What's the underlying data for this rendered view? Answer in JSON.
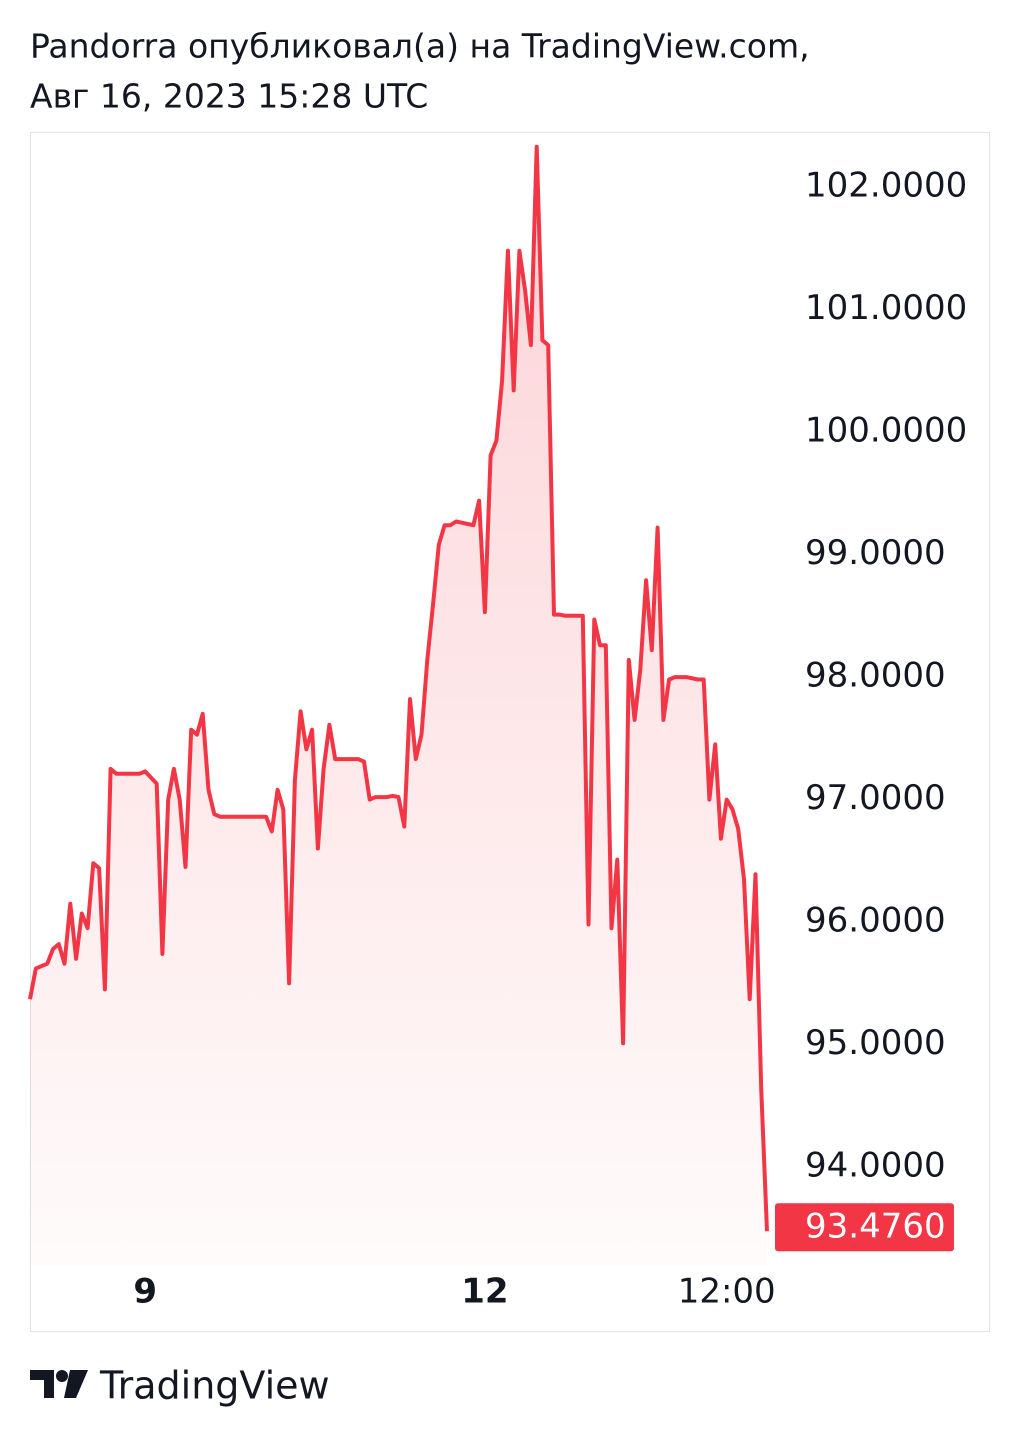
{
  "header": {
    "title": "Pandorra опубликовал(а) на TradingView.com,",
    "subtitle": "Авг 16, 2023 15:28 UTC"
  },
  "footer": {
    "brand": "TradingView"
  },
  "chart_data": {
    "type": "area",
    "color": "#f23645",
    "categories": [
      null,
      null,
      null,
      null,
      null,
      null,
      null,
      null,
      null,
      null,
      null,
      null,
      null,
      null,
      null,
      null,
      null,
      null,
      null,
      null,
      "9",
      null,
      null,
      null,
      null,
      null,
      null,
      null,
      null,
      null,
      null,
      null,
      null,
      null,
      null,
      null,
      null,
      null,
      null,
      null,
      null,
      null,
      null,
      null,
      null,
      null,
      null,
      null,
      null,
      null,
      null,
      null,
      null,
      null,
      null,
      null,
      null,
      null,
      null,
      null,
      null,
      null,
      null,
      null,
      null,
      null,
      null,
      null,
      null,
      null,
      null,
      null,
      null,
      null,
      null,
      null,
      null,
      null,
      null,
      "12",
      null,
      null,
      null,
      null,
      null,
      null,
      null,
      null,
      null,
      null,
      null,
      null,
      null,
      null,
      null,
      null,
      null,
      null,
      null,
      null,
      null,
      null,
      null,
      null,
      null,
      null,
      null,
      null,
      null,
      null,
      null,
      null,
      null,
      null,
      null,
      null,
      null,
      null,
      null,
      null,
      null,
      "12:00",
      null,
      null,
      null,
      null,
      null,
      null,
      null
    ],
    "values": [
      95.37,
      95.62,
      95.64,
      95.66,
      95.78,
      95.82,
      95.66,
      96.15,
      95.7,
      96.07,
      95.95,
      96.48,
      96.44,
      95.45,
      97.25,
      97.21,
      97.21,
      97.21,
      97.21,
      97.21,
      97.23,
      97.18,
      97.13,
      95.74,
      97.0,
      97.25,
      97.0,
      96.45,
      97.57,
      97.53,
      97.7,
      97.08,
      96.88,
      96.86,
      96.86,
      96.86,
      96.86,
      96.86,
      96.86,
      96.86,
      96.86,
      96.86,
      96.74,
      97.08,
      96.92,
      95.5,
      97.16,
      97.72,
      97.41,
      97.57,
      96.6,
      97.25,
      97.61,
      97.33,
      97.33,
      97.33,
      97.33,
      97.33,
      97.31,
      97.0,
      97.02,
      97.02,
      97.02,
      97.03,
      97.02,
      96.78,
      97.82,
      97.33,
      97.53,
      98.14,
      98.59,
      99.08,
      99.24,
      99.24,
      99.27,
      99.26,
      99.25,
      99.24,
      99.44,
      98.53,
      99.81,
      99.93,
      100.42,
      101.48,
      100.34,
      101.48,
      101.15,
      100.71,
      102.33,
      100.75,
      100.71,
      98.51,
      98.51,
      98.5,
      98.5,
      98.5,
      98.5,
      95.98,
      98.47,
      98.26,
      98.26,
      95.95,
      96.51,
      95.01,
      98.14,
      97.65,
      98.06,
      98.79,
      98.22,
      99.22,
      97.65,
      97.98,
      98.0,
      98.0,
      98.0,
      97.99,
      97.98,
      97.98,
      97.0,
      97.45,
      96.68,
      97.0,
      96.92,
      96.76,
      96.35,
      95.37,
      96.39,
      94.64,
      93.476
    ],
    "value_labels": [
      null,
      null,
      null,
      null,
      null,
      null,
      null,
      null,
      null,
      null,
      null,
      null,
      null,
      null,
      null,
      null,
      null,
      null,
      null,
      null,
      null,
      null,
      null,
      null,
      null,
      null,
      null,
      null,
      null,
      null,
      null,
      null,
      null,
      null,
      null,
      null,
      null,
      null,
      null,
      null,
      null,
      null,
      null,
      null,
      null,
      null,
      null,
      null,
      null,
      null,
      null,
      null,
      null,
      null,
      null,
      null,
      null,
      null,
      null,
      null,
      null,
      null,
      null,
      null,
      null,
      null,
      null,
      null,
      null,
      null,
      null,
      null,
      null,
      null,
      null,
      null,
      null,
      null,
      null,
      null,
      null,
      null,
      null,
      null,
      null,
      null,
      null,
      null,
      null,
      null,
      null,
      null,
      null,
      null,
      null,
      null,
      null,
      null,
      null,
      null,
      null,
      null,
      null,
      null,
      null,
      null,
      null,
      null,
      null,
      null,
      null,
      null,
      null,
      null,
      null,
      null,
      null,
      null,
      null,
      null,
      null,
      null,
      null,
      null,
      null,
      null,
      null,
      null,
      "93.4760"
    ],
    "ylim": [
      93.2,
      102.45
    ],
    "yticks": [
      {
        "value": 102,
        "label": "102.0000"
      },
      {
        "value": 101,
        "label": "101.0000"
      },
      {
        "value": 100,
        "label": "100.0000"
      },
      {
        "value": 99,
        "label": "99.0000"
      },
      {
        "value": 98,
        "label": "98.0000"
      },
      {
        "value": 97,
        "label": "97.0000"
      },
      {
        "value": 96,
        "label": "96.0000"
      },
      {
        "value": 95,
        "label": "95.0000"
      },
      {
        "value": 94,
        "label": "94.0000"
      }
    ],
    "grid": false
  }
}
